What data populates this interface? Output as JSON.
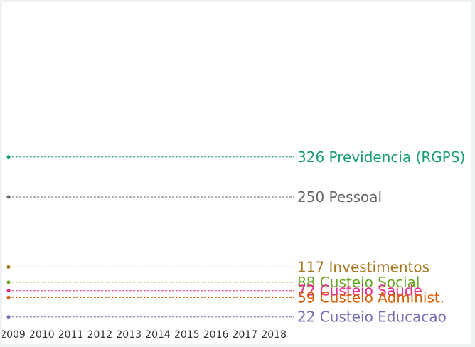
{
  "chart_data": {
    "type": "line",
    "title": "",
    "xlabel": "",
    "ylabel": "",
    "categories": [
      "2009",
      "2010",
      "2011",
      "2012",
      "2013",
      "2014",
      "2015",
      "2016",
      "2017",
      "2018"
    ],
    "ylim": [
      0,
      500
    ],
    "grid": false,
    "legend": "direct labels at right end",
    "series": [
      {
        "name": "Previdencia (RGPS)",
        "value": 326,
        "label": "326 Previdencia (RGPS)",
        "color": "#1a9e77"
      },
      {
        "name": "Pessoal",
        "value": 250,
        "label": "250 Pessoal",
        "color": "#666666"
      },
      {
        "name": "Investimentos",
        "value": 117,
        "label": "117 Investimentos",
        "color": "#a6761d"
      },
      {
        "name": "Custeio Social",
        "value": 88,
        "label": "88 Custeio Social",
        "color": "#66a61e"
      },
      {
        "name": "Custeio Saude",
        "value": 72,
        "label": "72 Custeio Saude",
        "color": "#e7298a"
      },
      {
        "name": "Custeio Administ.",
        "value": 59,
        "label": "59 Custeio Administ.",
        "color": "#d95f02"
      },
      {
        "name": "Custeio Educacao",
        "value": 22,
        "label": "22 Custeio Educacao",
        "color": "#7570b3"
      }
    ]
  }
}
